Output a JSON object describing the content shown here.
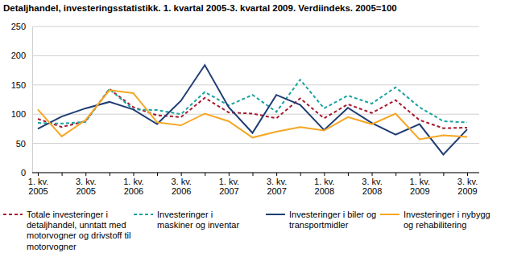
{
  "chart_data": {
    "type": "line",
    "title": "Detaljhandel, investeringsstatistikk. 1. kvartal 2005-3. kvartal 2009. Verdiindeks. 2005=100",
    "categories": [
      "1. kv.\n2005",
      null,
      "3. kv.\n2005",
      null,
      "1. kv.\n2006",
      null,
      "3. kv.\n2006",
      null,
      "1. kv.\n2007",
      null,
      "3. kv.\n2007",
      null,
      "1. kv.\n2008",
      null,
      "3. kv.\n2008",
      null,
      "1. kv.\n2009",
      null,
      "3. kv.\n2009"
    ],
    "ylim": [
      0,
      250
    ],
    "yticks": [
      0,
      50,
      100,
      150,
      200,
      250
    ],
    "grid": true,
    "legend": "bottom",
    "series": [
      {
        "name": "Totale investeringer i detaljhandel, unntatt med motorvogner og drivstoff til motorvogner",
        "color": "#a6192e",
        "line_style": "dashed",
        "values": [
          92,
          78,
          88,
          143,
          112,
          98,
          95,
          128,
          103,
          101,
          93,
          127,
          93,
          117,
          102,
          124,
          90,
          76,
          77
        ]
      },
      {
        "name": "Investeringer i maskiner og inventar",
        "color": "#1aa3a0",
        "line_style": "dashed",
        "values": [
          85,
          84,
          87,
          143,
          108,
          107,
          100,
          138,
          115,
          133,
          104,
          159,
          110,
          132,
          118,
          146,
          112,
          88,
          86
        ]
      },
      {
        "name": "Investeringer i biler og transportmidler",
        "color": "#1f3c73",
        "line_style": "solid",
        "values": [
          75,
          96,
          110,
          121,
          108,
          83,
          123,
          184,
          112,
          68,
          133,
          116,
          73,
          111,
          85,
          65,
          83,
          31,
          74
        ]
      },
      {
        "name": "Investeringer i nybygg og rehabilitering",
        "color": "#f5a623",
        "line_style": "solid",
        "values": [
          108,
          62,
          90,
          141,
          136,
          86,
          81,
          101,
          88,
          60,
          70,
          78,
          72,
          95,
          83,
          101,
          57,
          64,
          61
        ]
      }
    ]
  }
}
